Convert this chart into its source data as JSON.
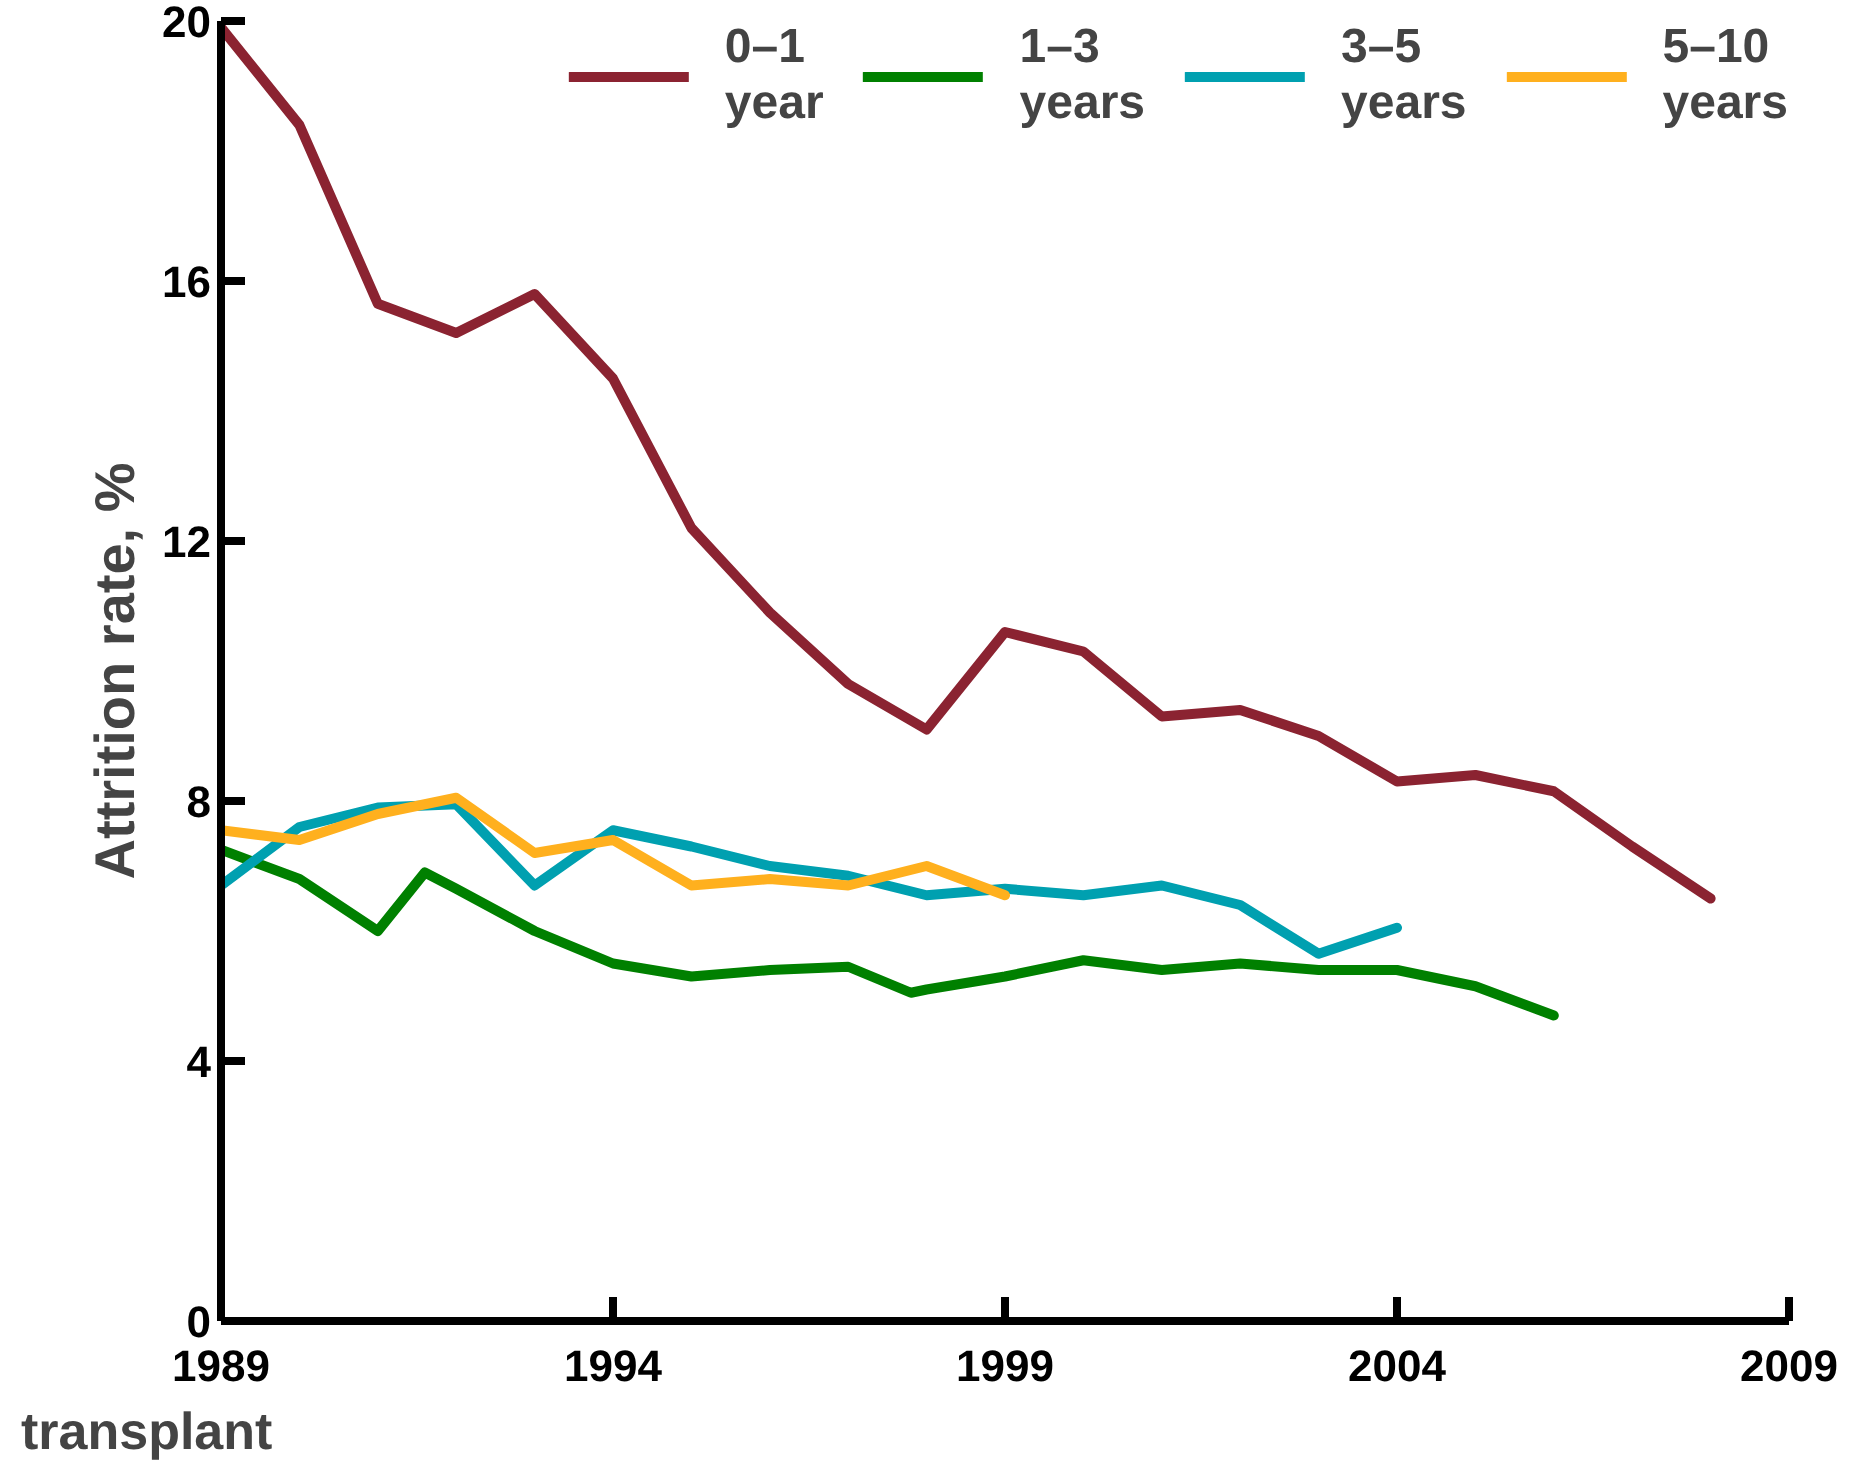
{
  "chart_data": {
    "type": "line",
    "xlabel": "transplant",
    "ylabel": "Attrition rate, %",
    "xlim": [
      1989,
      2009
    ],
    "xticks": [
      1989,
      1994,
      1999,
      2004,
      2009
    ],
    "ylim": [
      0,
      20
    ],
    "yticks": [
      0,
      4,
      8,
      12,
      16,
      20
    ],
    "grid": false,
    "legend": "top right",
    "marker": "none",
    "line_style": "solid",
    "series": [
      {
        "name": "0–1\nyear",
        "color": "#8b2331",
        "x": [
          1989,
          1990,
          1991,
          1992,
          1993,
          1994,
          1995,
          1996,
          1997,
          1998,
          1999,
          2000,
          2001,
          2002,
          2003,
          2004,
          2005,
          2006,
          2007,
          2008
        ],
        "values": [
          19.9,
          18.4,
          15.65,
          15.2,
          15.8,
          14.5,
          12.2,
          10.9,
          9.8,
          9.1,
          10.6,
          10.3,
          9.3,
          9.4,
          9.0,
          8.3,
          8.4,
          8.15,
          7.3,
          6.5
        ]
      },
      {
        "name": "1–3\nyears",
        "color": "#008000",
        "x": [
          1989,
          1990,
          1991,
          1991.6,
          1992,
          1993,
          1994,
          1995,
          1996,
          1997,
          1997.8,
          1998,
          1999,
          2000,
          2001,
          2002,
          2003,
          2004,
          2005,
          2006
        ],
        "values": [
          7.25,
          6.8,
          6.0,
          6.9,
          6.65,
          6.0,
          5.5,
          5.3,
          5.4,
          5.45,
          5.05,
          5.1,
          5.3,
          5.55,
          5.4,
          5.5,
          5.4,
          5.4,
          5.15,
          4.7
        ]
      },
      {
        "name": "3–5\nyears",
        "color": "#00a0b0",
        "x": [
          1989,
          1990,
          1991,
          1992,
          1993,
          1994,
          1995,
          1996,
          1997,
          1998,
          1999,
          2000,
          2001,
          2002,
          2003,
          2004
        ],
        "values": [
          6.7,
          7.6,
          7.9,
          7.95,
          6.7,
          7.55,
          7.3,
          7.0,
          6.85,
          6.55,
          6.65,
          6.55,
          6.7,
          6.4,
          5.65,
          6.05
        ]
      },
      {
        "name": "5–10\nyears",
        "color": "#ffb01e",
        "x": [
          1989,
          1990,
          1991,
          1992,
          1993,
          1994,
          1995,
          1996,
          1997,
          1998,
          1999
        ],
        "values": [
          7.55,
          7.4,
          7.8,
          8.05,
          7.2,
          7.4,
          6.7,
          6.8,
          6.7,
          7.0,
          6.55
        ]
      }
    ]
  }
}
